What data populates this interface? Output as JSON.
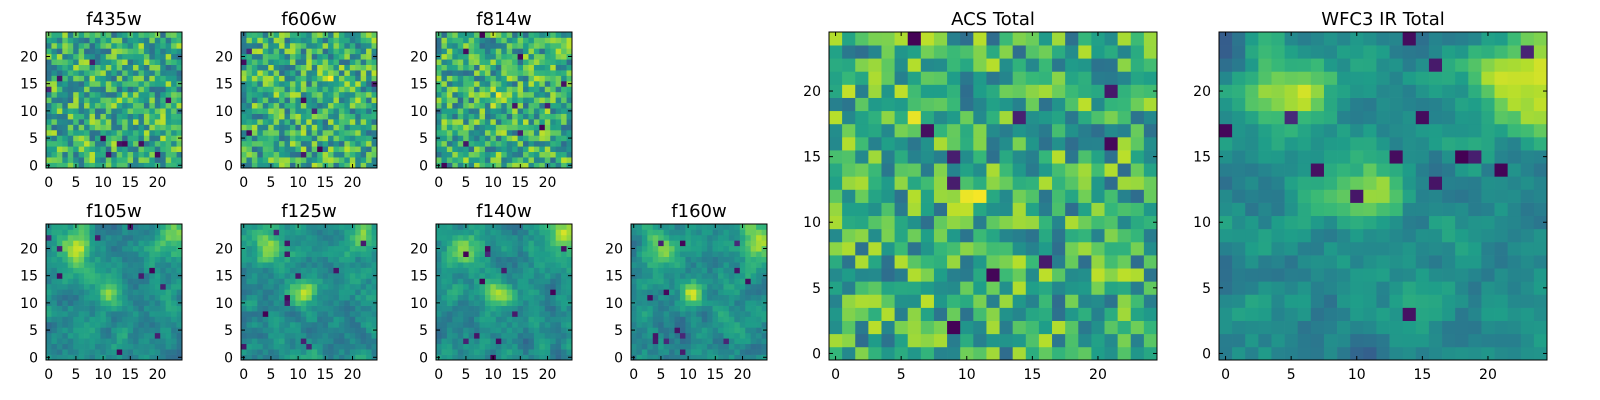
{
  "colormap": {
    "name": "viridis",
    "stops": [
      "#440154",
      "#482878",
      "#3e4989",
      "#31688e",
      "#26828e",
      "#1f9e89",
      "#35b779",
      "#6ece58",
      "#b5de2b",
      "#fde725"
    ]
  },
  "chart_data": [
    {
      "type": "heatmap",
      "title": "f435w",
      "grid_size": 25,
      "xticks": [
        0,
        5,
        10,
        15,
        20
      ],
      "yticks": [
        0,
        5,
        10,
        15,
        20
      ],
      "xlim": [
        -0.5,
        24.5
      ],
      "ylim": [
        -0.5,
        24.5
      ],
      "texture": "noise",
      "seed": 11,
      "sources": [],
      "dark_pixels": 10
    },
    {
      "type": "heatmap",
      "title": "f606w",
      "grid_size": 25,
      "xticks": [
        0,
        5,
        10,
        15,
        20
      ],
      "yticks": [
        0,
        5,
        10,
        15,
        20
      ],
      "xlim": [
        -0.5,
        24.5
      ],
      "ylim": [
        -0.5,
        24.5
      ],
      "texture": "noise",
      "seed": 23,
      "sources": [
        {
          "x": 16,
          "y": 17,
          "amp": 0.25,
          "sigma": 0.8
        }
      ],
      "dark_pixels": 8
    },
    {
      "type": "heatmap",
      "title": "f814w",
      "grid_size": 25,
      "xticks": [
        0,
        5,
        10,
        15,
        20
      ],
      "yticks": [
        0,
        5,
        10,
        15,
        20
      ],
      "xlim": [
        -0.5,
        24.5
      ],
      "ylim": [
        -0.5,
        24.5
      ],
      "texture": "noise",
      "seed": 37,
      "sources": [
        {
          "x": 11,
          "y": 12,
          "amp": 0.15,
          "sigma": 1.2
        }
      ],
      "dark_pixels": 10
    },
    {
      "type": "heatmap",
      "title": "f105w",
      "grid_size": 25,
      "xticks": [
        0,
        5,
        10,
        15,
        20
      ],
      "yticks": [
        0,
        5,
        10,
        15,
        20
      ],
      "xlim": [
        -0.5,
        24.5
      ],
      "ylim": [
        -0.5,
        24.5
      ],
      "texture": "smooth",
      "seed": 41,
      "sources": [
        {
          "x": 5,
          "y": 20,
          "amp": 0.35,
          "sigma": 2.2
        },
        {
          "x": 11,
          "y": 12,
          "amp": 0.35,
          "sigma": 1.6
        },
        {
          "x": 23,
          "y": 22,
          "amp": 0.3,
          "sigma": 2.5
        }
      ],
      "dark_pixels": 10
    },
    {
      "type": "heatmap",
      "title": "f125w",
      "grid_size": 25,
      "xticks": [
        0,
        5,
        10,
        15,
        20
      ],
      "yticks": [
        0,
        5,
        10,
        15,
        20
      ],
      "xlim": [
        -0.5,
        24.5
      ],
      "ylim": [
        -0.5,
        24.5
      ],
      "texture": "smooth",
      "seed": 53,
      "sources": [
        {
          "x": 5,
          "y": 20,
          "amp": 0.35,
          "sigma": 2.2
        },
        {
          "x": 11,
          "y": 12,
          "amp": 0.35,
          "sigma": 1.6
        },
        {
          "x": 23,
          "y": 22,
          "amp": 0.3,
          "sigma": 2.5
        }
      ],
      "dark_pixels": 12
    },
    {
      "type": "heatmap",
      "title": "f140w",
      "grid_size": 25,
      "xticks": [
        0,
        5,
        10,
        15,
        20
      ],
      "yticks": [
        0,
        5,
        10,
        15,
        20
      ],
      "xlim": [
        -0.5,
        24.5
      ],
      "ylim": [
        -0.5,
        24.5
      ],
      "texture": "smooth",
      "seed": 67,
      "sources": [
        {
          "x": 5,
          "y": 20,
          "amp": 0.35,
          "sigma": 2.2
        },
        {
          "x": 11,
          "y": 12,
          "amp": 0.35,
          "sigma": 1.6
        },
        {
          "x": 23,
          "y": 22,
          "amp": 0.35,
          "sigma": 2.5
        }
      ],
      "dark_pixels": 12
    },
    {
      "type": "heatmap",
      "title": "f160w",
      "grid_size": 25,
      "xticks": [
        0,
        5,
        10,
        15,
        20
      ],
      "yticks": [
        0,
        5,
        10,
        15,
        20
      ],
      "xlim": [
        -0.5,
        24.5
      ],
      "ylim": [
        -0.5,
        24.5
      ],
      "texture": "smooth",
      "seed": 79,
      "sources": [
        {
          "x": 5,
          "y": 20,
          "amp": 0.4,
          "sigma": 2.0
        },
        {
          "x": 11,
          "y": 12,
          "amp": 0.4,
          "sigma": 1.5
        },
        {
          "x": 23,
          "y": 22,
          "amp": 0.4,
          "sigma": 2.5
        }
      ],
      "dark_pixels": 14
    },
    {
      "type": "heatmap",
      "title": "ACS Total",
      "grid_size": 25,
      "xticks": [
        0,
        5,
        10,
        15,
        20
      ],
      "yticks": [
        0,
        5,
        10,
        15,
        20
      ],
      "xlim": [
        -0.5,
        24.5
      ],
      "ylim": [
        -0.5,
        24.5
      ],
      "texture": "noise",
      "seed": 97,
      "sources": [
        {
          "x": 11,
          "y": 12,
          "amp": 0.15,
          "sigma": 1.2
        },
        {
          "x": 5,
          "y": 19,
          "amp": 0.1,
          "sigma": 2.0
        }
      ],
      "dark_pixels": 10
    },
    {
      "type": "heatmap",
      "title": "WFC3 IR Total",
      "grid_size": 25,
      "xticks": [
        0,
        5,
        10,
        15,
        20
      ],
      "yticks": [
        0,
        5,
        10,
        15,
        20
      ],
      "xlim": [
        -0.5,
        24.5
      ],
      "ylim": [
        -0.5,
        24.5
      ],
      "texture": "smooth",
      "seed": 103,
      "sources": [
        {
          "x": 5,
          "y": 20,
          "amp": 0.45,
          "sigma": 2.2
        },
        {
          "x": 11,
          "y": 12,
          "amp": 0.5,
          "sigma": 1.6
        },
        {
          "x": 23,
          "y": 21,
          "amp": 0.45,
          "sigma": 2.8
        }
      ],
      "dark_pixels": 14
    }
  ]
}
